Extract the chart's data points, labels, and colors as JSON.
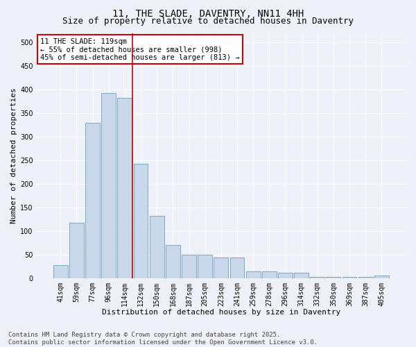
{
  "title": "11, THE SLADE, DAVENTRY, NN11 4HH",
  "subtitle": "Size of property relative to detached houses in Daventry",
  "xlabel": "Distribution of detached houses by size in Daventry",
  "ylabel": "Number of detached properties",
  "categories": [
    "41sqm",
    "59sqm",
    "77sqm",
    "96sqm",
    "114sqm",
    "132sqm",
    "150sqm",
    "168sqm",
    "187sqm",
    "205sqm",
    "223sqm",
    "241sqm",
    "259sqm",
    "278sqm",
    "296sqm",
    "314sqm",
    "332sqm",
    "350sqm",
    "369sqm",
    "387sqm",
    "405sqm"
  ],
  "values": [
    27,
    117,
    330,
    393,
    383,
    242,
    132,
    70,
    50,
    50,
    44,
    44,
    14,
    14,
    11,
    11,
    2,
    2,
    2,
    2,
    5
  ],
  "bar_color": "#c8d8ea",
  "bar_edge_color": "#7aaac8",
  "vline_x_index": 4.5,
  "vline_color": "#cc0000",
  "annotation_text": "11 THE SLADE: 119sqm\n← 55% of detached houses are smaller (998)\n45% of semi-detached houses are larger (813) →",
  "annotation_box_facecolor": "#ffffff",
  "annotation_box_edgecolor": "#cc0000",
  "ylim": [
    0,
    520
  ],
  "yticks": [
    0,
    50,
    100,
    150,
    200,
    250,
    300,
    350,
    400,
    450,
    500
  ],
  "background_color": "#eef2f8",
  "grid_color": "#ffffff",
  "footer_line1": "Contains HM Land Registry data © Crown copyright and database right 2025.",
  "footer_line2": "Contains public sector information licensed under the Open Government Licence v3.0.",
  "title_fontsize": 10,
  "subtitle_fontsize": 9,
  "xlabel_fontsize": 8,
  "ylabel_fontsize": 8,
  "tick_fontsize": 7,
  "annotation_fontsize": 7.5,
  "footer_fontsize": 6.5
}
